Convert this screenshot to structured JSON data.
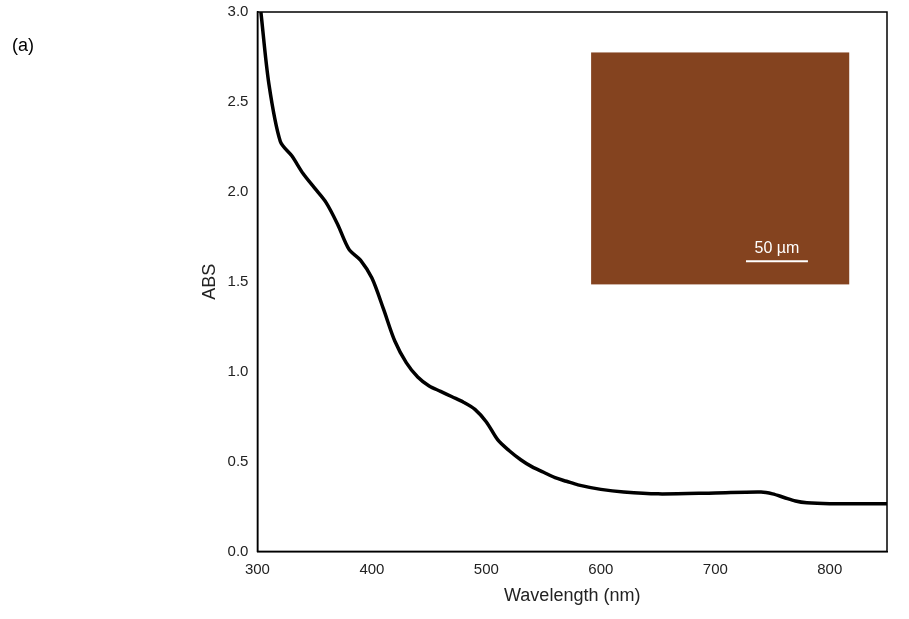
{
  "chart_data": {
    "type": "line",
    "panel_label": "(a)",
    "annotations": [
      "50 µm"
    ],
    "x_label": "Wavelength (nm)",
    "y_label": "ABS",
    "x": [
      303,
      310,
      320,
      330,
      340,
      350,
      360,
      370,
      380,
      390,
      400,
      410,
      420,
      430,
      440,
      450,
      460,
      470,
      480,
      490,
      500,
      510,
      520,
      530,
      540,
      550,
      560,
      570,
      580,
      600,
      620,
      650,
      700,
      740,
      750,
      760,
      770,
      780,
      800,
      840,
      850
    ],
    "values": [
      3.0,
      2.6,
      2.28,
      2.2,
      2.1,
      2.02,
      1.94,
      1.82,
      1.68,
      1.62,
      1.52,
      1.35,
      1.17,
      1.05,
      0.97,
      0.92,
      0.89,
      0.86,
      0.83,
      0.79,
      0.72,
      0.62,
      0.56,
      0.51,
      0.47,
      0.44,
      0.41,
      0.39,
      0.37,
      0.345,
      0.33,
      0.32,
      0.325,
      0.33,
      0.32,
      0.3,
      0.28,
      0.27,
      0.265,
      0.265,
      0.265
    ],
    "color": "#000000",
    "xlim": [
      300,
      850
    ],
    "xticks": [
      300,
      400,
      500,
      600,
      700,
      800
    ],
    "ylim": [
      0,
      3
    ],
    "yticks": [
      {
        "value": 0,
        "label": "0.0"
      },
      0.5,
      {
        "value": 1,
        "label": "1.0"
      },
      1.5,
      {
        "value": 2,
        "label": "2.0"
      },
      2.5,
      {
        "value": 3,
        "label": "3.0"
      }
    ],
    "grid": false
  }
}
